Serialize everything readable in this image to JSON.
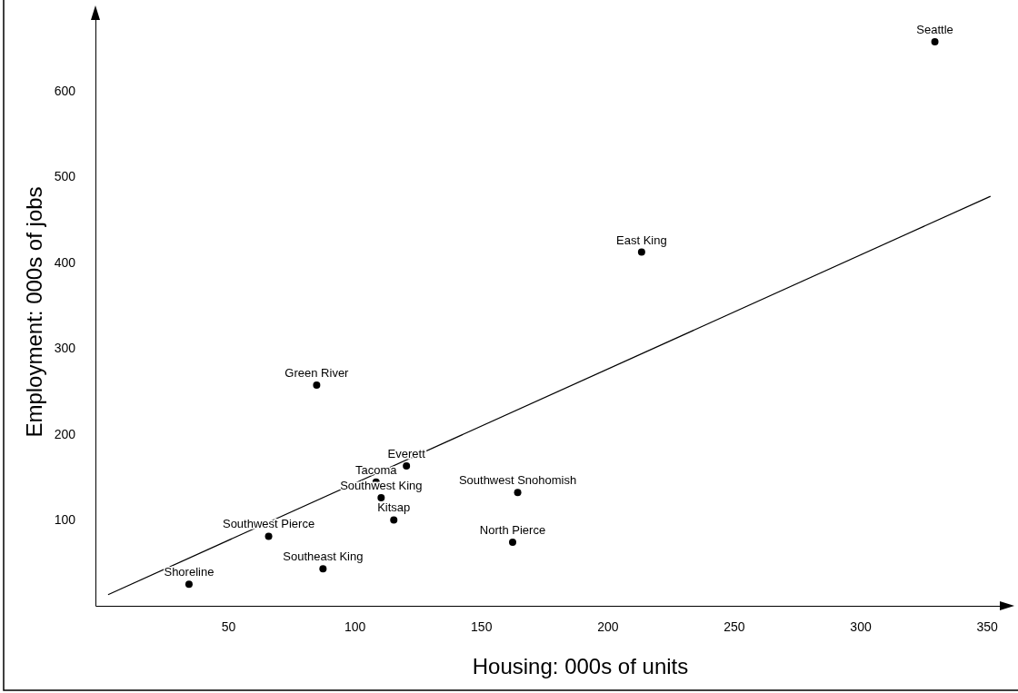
{
  "chart_data": {
    "type": "scatter",
    "xlabel": "Housing: 000s of units",
    "ylabel": "Employment: 000s of jobs",
    "xlim": [
      -1,
      361
    ],
    "ylim": [
      0,
      695
    ],
    "xticks": [
      50,
      100,
      150,
      200,
      250,
      300,
      350
    ],
    "yticks": [
      100,
      200,
      300,
      400,
      500,
      600
    ],
    "series": [
      {
        "type": "scatter",
        "color": "#000000",
        "marker": "circle",
        "x": [
          331,
          215,
          86.5,
          122,
          110,
          112,
          166,
          117,
          164,
          67.5,
          89,
          36
        ],
        "values": [
          657,
          412,
          257,
          163,
          144,
          126,
          132,
          100,
          74,
          81,
          43,
          25
        ],
        "value_labels": [
          "Seattle",
          "East King",
          "Green River",
          "Everett",
          "Tacoma",
          "Southwest King",
          "Southwest Snohomish",
          "Kitsap",
          "North Pierce",
          "Southwest Pierce",
          "Southeast King",
          "Shoreline"
        ]
      },
      {
        "type": "line",
        "color": "#000000",
        "x": [
          4,
          353
        ],
        "values": [
          13,
          477
        ]
      }
    ]
  }
}
